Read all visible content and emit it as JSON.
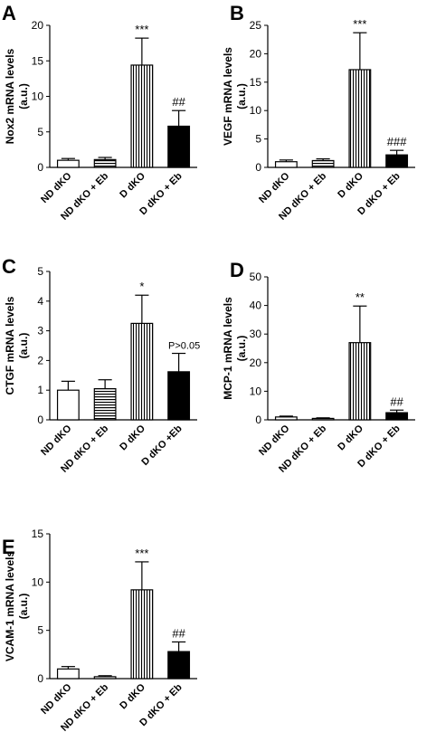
{
  "patterns": {
    "open": "#ffffff",
    "horizontal": "horizontal-stripes",
    "vertical": "vertical-stripes",
    "filled": "#000000"
  },
  "chart_data": [
    {
      "type": "bar",
      "panel": "A",
      "ylabel": [
        "Nox2 mRNA levels",
        "(a.u.)"
      ],
      "categories": [
        "ND dKO",
        "ND dKO + Eb",
        "D dKO",
        "D dKO + Eb"
      ],
      "values": [
        1.0,
        1.1,
        14.4,
        5.8
      ],
      "errors": [
        0.25,
        0.3,
        3.8,
        2.2
      ],
      "fills": [
        "open",
        "horizontal",
        "vertical",
        "filled"
      ],
      "annotations": [
        "",
        "",
        "***",
        "##"
      ],
      "ylim": [
        0,
        20
      ],
      "yticks": [
        0,
        5,
        10,
        15,
        20
      ]
    },
    {
      "type": "bar",
      "panel": "B",
      "ylabel": [
        "VEGF mRNA levels",
        "(a.u.)"
      ],
      "categories": [
        "ND dKO",
        "ND dKO + Eb",
        "D dKO",
        "D dKO + Eb"
      ],
      "values": [
        1.0,
        1.2,
        17.2,
        2.2
      ],
      "errors": [
        0.3,
        0.3,
        6.5,
        0.8
      ],
      "fills": [
        "open",
        "horizontal",
        "vertical",
        "filled"
      ],
      "annotations": [
        "",
        "",
        "***",
        "###"
      ],
      "ylim": [
        0,
        25
      ],
      "yticks": [
        0,
        5,
        10,
        15,
        20,
        25
      ]
    },
    {
      "type": "bar",
      "panel": "C",
      "ylabel": [
        "CTGF mRNA levels",
        "(a.u.)"
      ],
      "categories": [
        "ND dKO",
        "ND dKO + Eb",
        "D dKO",
        "D dKO +Eb"
      ],
      "values": [
        1.0,
        1.05,
        3.25,
        1.62
      ],
      "errors": [
        0.3,
        0.3,
        0.95,
        0.62
      ],
      "fills": [
        "open",
        "horizontal",
        "vertical",
        "filled"
      ],
      "annotations": [
        "",
        "",
        "*",
        "P>0.05"
      ],
      "ylim": [
        0,
        5
      ],
      "yticks": [
        0,
        1,
        2,
        3,
        4,
        5
      ]
    },
    {
      "type": "bar",
      "panel": "D",
      "ylabel": [
        "MCP-1 mRNA levels",
        "(a.u.)"
      ],
      "categories": [
        "ND dKO",
        "ND dKO + Eb",
        "D dKO",
        "D dKO + Eb"
      ],
      "values": [
        1.0,
        0.5,
        27.0,
        2.5
      ],
      "errors": [
        0.3,
        0.2,
        12.8,
        0.9
      ],
      "fills": [
        "open",
        "horizontal",
        "vertical",
        "filled"
      ],
      "annotations": [
        "",
        "",
        "**",
        "##"
      ],
      "ylim": [
        0,
        50
      ],
      "yticks": [
        0,
        10,
        20,
        30,
        40,
        50
      ]
    },
    {
      "type": "bar",
      "panel": "E",
      "ylabel": [
        "VCAM-1 mRNA levels",
        "(a.u.)"
      ],
      "categories": [
        "ND dKO",
        "ND dKO + Eb",
        "D dKO",
        "D dKO + Eb"
      ],
      "values": [
        1.0,
        0.2,
        9.2,
        2.8
      ],
      "errors": [
        0.25,
        0.1,
        2.9,
        1.0
      ],
      "fills": [
        "open",
        "horizontal",
        "vertical",
        "filled"
      ],
      "annotations": [
        "",
        "",
        "***",
        "##"
      ],
      "ylim": [
        0,
        15
      ],
      "yticks": [
        0,
        5,
        10,
        15
      ]
    }
  ]
}
